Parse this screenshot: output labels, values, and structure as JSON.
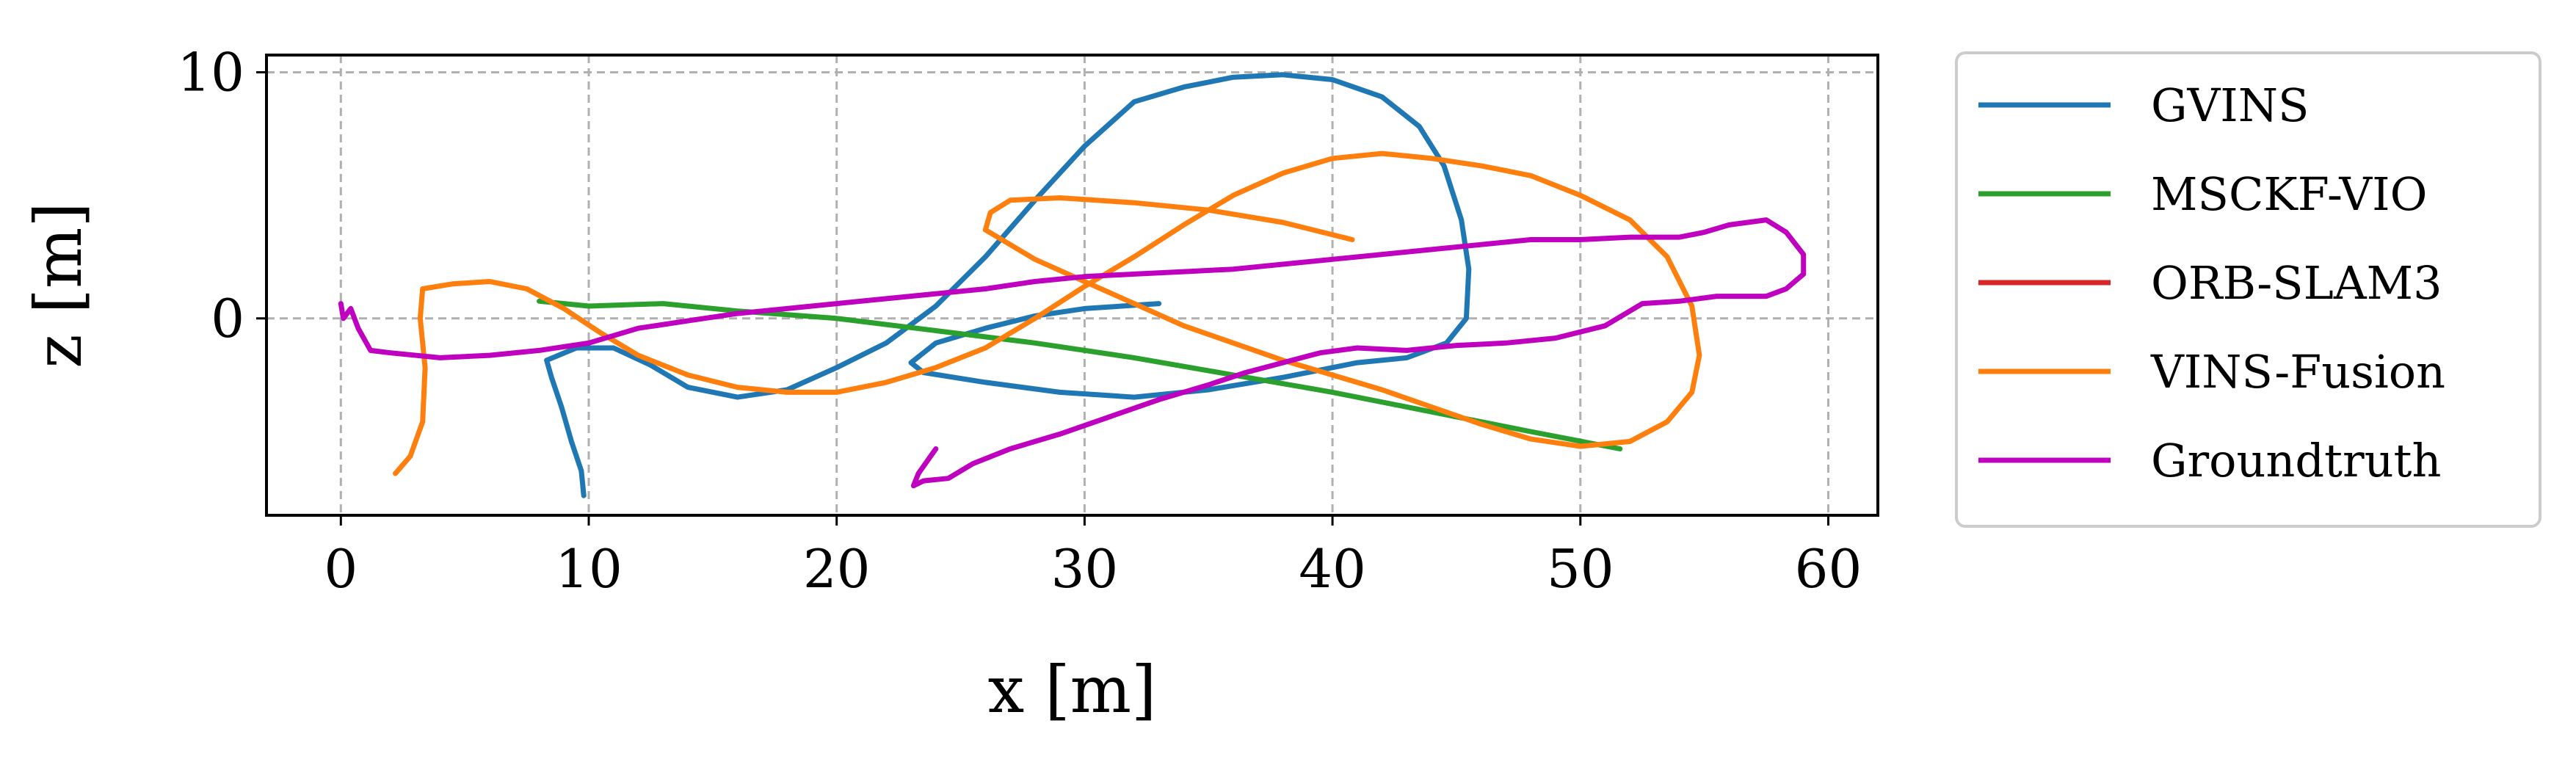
{
  "chart_data": {
    "type": "line",
    "title": "",
    "xlabel": "x [m]",
    "ylabel": "z [m]",
    "xlim": [
      -3,
      62
    ],
    "ylim": [
      -8,
      10.7
    ],
    "xticks": [
      0,
      10,
      20,
      30,
      40,
      50,
      60
    ],
    "yticks": [
      0,
      10
    ],
    "xtick_labels": [
      "0",
      "10",
      "20",
      "30",
      "40",
      "50",
      "60"
    ],
    "ytick_labels": [
      "0",
      "10"
    ],
    "grid": true,
    "grid_style": "dashed",
    "legend_position": "outside-right",
    "series": [
      {
        "name": "GVINS",
        "color": "#1f77b4",
        "points": [
          [
            9.8,
            -7.2
          ],
          [
            9.7,
            -6.2
          ],
          [
            9.3,
            -5.0
          ],
          [
            8.9,
            -3.6
          ],
          [
            8.5,
            -2.4
          ],
          [
            8.3,
            -1.7
          ],
          [
            9.5,
            -1.2
          ],
          [
            11.0,
            -1.2
          ],
          [
            12.5,
            -1.9
          ],
          [
            14.0,
            -2.8
          ],
          [
            16.0,
            -3.2
          ],
          [
            18.0,
            -2.9
          ],
          [
            20.0,
            -2.0
          ],
          [
            22.0,
            -1.0
          ],
          [
            24.0,
            0.5
          ],
          [
            26.0,
            2.5
          ],
          [
            28.0,
            4.8
          ],
          [
            30.0,
            7.0
          ],
          [
            32.0,
            8.8
          ],
          [
            34.0,
            9.4
          ],
          [
            36.0,
            9.8
          ],
          [
            38.0,
            9.9
          ],
          [
            40.0,
            9.7
          ],
          [
            42.0,
            9.0
          ],
          [
            43.5,
            7.8
          ],
          [
            44.5,
            6.2
          ],
          [
            45.2,
            4.0
          ],
          [
            45.5,
            2.0
          ],
          [
            45.4,
            0.0
          ],
          [
            44.6,
            -1.0
          ],
          [
            43.0,
            -1.6
          ],
          [
            41.0,
            -1.8
          ],
          [
            38.0,
            -2.4
          ],
          [
            35.0,
            -2.9
          ],
          [
            32.0,
            -3.2
          ],
          [
            29.0,
            -3.0
          ],
          [
            26.0,
            -2.6
          ],
          [
            23.5,
            -2.2
          ],
          [
            23.0,
            -1.8
          ],
          [
            24.0,
            -1.0
          ],
          [
            26.0,
            -0.4
          ],
          [
            28.0,
            0.1
          ],
          [
            30.0,
            0.4
          ],
          [
            33.0,
            0.6
          ]
        ]
      },
      {
        "name": "MSCKF-VIO",
        "color": "#2ca02c",
        "points": [
          [
            8.0,
            0.7
          ],
          [
            10.0,
            0.5
          ],
          [
            13.0,
            0.6
          ],
          [
            16.0,
            0.3
          ],
          [
            20.0,
            0.0
          ],
          [
            24.0,
            -0.5
          ],
          [
            28.0,
            -1.0
          ],
          [
            32.0,
            -1.6
          ],
          [
            36.0,
            -2.3
          ],
          [
            40.0,
            -3.0
          ],
          [
            44.0,
            -3.8
          ],
          [
            48.0,
            -4.6
          ],
          [
            51.6,
            -5.3
          ]
        ]
      },
      {
        "name": "ORB-SLAM3",
        "color": "#d62728",
        "points": []
      },
      {
        "name": "VINS-Fusion",
        "color": "#ff7f0e",
        "points": [
          [
            2.2,
            -6.3
          ],
          [
            2.8,
            -5.6
          ],
          [
            3.3,
            -4.2
          ],
          [
            3.4,
            -2.0
          ],
          [
            3.2,
            0.0
          ],
          [
            3.3,
            1.2
          ],
          [
            4.5,
            1.4
          ],
          [
            6.0,
            1.5
          ],
          [
            7.5,
            1.2
          ],
          [
            9.0,
            0.4
          ],
          [
            10.5,
            -0.6
          ],
          [
            12.0,
            -1.5
          ],
          [
            14.0,
            -2.3
          ],
          [
            16.0,
            -2.8
          ],
          [
            18.0,
            -3.0
          ],
          [
            20.0,
            -3.0
          ],
          [
            22.0,
            -2.6
          ],
          [
            24.0,
            -2.0
          ],
          [
            26.0,
            -1.2
          ],
          [
            28.0,
            0.0
          ],
          [
            30.0,
            1.3
          ],
          [
            32.0,
            2.5
          ],
          [
            34.0,
            3.8
          ],
          [
            36.0,
            5.0
          ],
          [
            38.0,
            5.9
          ],
          [
            40.0,
            6.5
          ],
          [
            42.0,
            6.7
          ],
          [
            44.0,
            6.5
          ],
          [
            46.0,
            6.2
          ],
          [
            48.0,
            5.8
          ],
          [
            50.0,
            5.0
          ],
          [
            52.0,
            4.0
          ],
          [
            53.5,
            2.5
          ],
          [
            54.5,
            0.5
          ],
          [
            54.8,
            -1.5
          ],
          [
            54.5,
            -3.0
          ],
          [
            53.5,
            -4.2
          ],
          [
            52.0,
            -5.0
          ],
          [
            50.0,
            -5.2
          ],
          [
            48.0,
            -4.9
          ],
          [
            46.0,
            -4.3
          ],
          [
            44.0,
            -3.6
          ],
          [
            42.0,
            -2.9
          ],
          [
            40.0,
            -2.3
          ],
          [
            38.0,
            -1.7
          ],
          [
            36.0,
            -1.0
          ],
          [
            34.0,
            -0.3
          ],
          [
            32.0,
            0.6
          ],
          [
            30.0,
            1.5
          ],
          [
            28.0,
            2.4
          ],
          [
            26.0,
            3.6
          ],
          [
            26.2,
            4.3
          ],
          [
            27.0,
            4.8
          ],
          [
            29.0,
            4.9
          ],
          [
            32.0,
            4.7
          ],
          [
            35.0,
            4.4
          ],
          [
            38.0,
            3.9
          ],
          [
            40.8,
            3.2
          ]
        ]
      },
      {
        "name": "Groundtruth",
        "color": "#bf00bf",
        "points": [
          [
            0.0,
            0.6
          ],
          [
            0.1,
            0.0
          ],
          [
            0.4,
            0.4
          ],
          [
            0.7,
            -0.4
          ],
          [
            1.2,
            -1.3
          ],
          [
            2.0,
            -1.4
          ],
          [
            4.0,
            -1.6
          ],
          [
            6.0,
            -1.5
          ],
          [
            8.0,
            -1.3
          ],
          [
            10.0,
            -1.0
          ],
          [
            12.0,
            -0.4
          ],
          [
            14.0,
            -0.1
          ],
          [
            16.0,
            0.2
          ],
          [
            18.0,
            0.4
          ],
          [
            20.0,
            0.6
          ],
          [
            22.0,
            0.8
          ],
          [
            24.0,
            1.0
          ],
          [
            26.0,
            1.2
          ],
          [
            28.0,
            1.5
          ],
          [
            30.0,
            1.7
          ],
          [
            32.0,
            1.8
          ],
          [
            34.0,
            1.9
          ],
          [
            36.0,
            2.0
          ],
          [
            38.0,
            2.2
          ],
          [
            40.0,
            2.4
          ],
          [
            42.0,
            2.6
          ],
          [
            44.0,
            2.8
          ],
          [
            46.0,
            3.0
          ],
          [
            48.0,
            3.2
          ],
          [
            50.0,
            3.2
          ],
          [
            52.0,
            3.3
          ],
          [
            54.0,
            3.3
          ],
          [
            55.0,
            3.5
          ],
          [
            56.0,
            3.8
          ],
          [
            57.5,
            4.0
          ],
          [
            58.3,
            3.5
          ],
          [
            59.0,
            2.6
          ],
          [
            59.0,
            1.8
          ],
          [
            58.3,
            1.2
          ],
          [
            57.5,
            0.9
          ],
          [
            56.5,
            0.9
          ],
          [
            55.5,
            0.9
          ],
          [
            54.0,
            0.7
          ],
          [
            52.5,
            0.6
          ],
          [
            51.0,
            -0.3
          ],
          [
            49.0,
            -0.8
          ],
          [
            47.0,
            -1.0
          ],
          [
            45.0,
            -1.1
          ],
          [
            43.0,
            -1.3
          ],
          [
            41.0,
            -1.2
          ],
          [
            39.5,
            -1.4
          ],
          [
            38.0,
            -1.8
          ],
          [
            36.5,
            -2.2
          ],
          [
            35.0,
            -2.7
          ],
          [
            33.0,
            -3.3
          ],
          [
            31.0,
            -4.0
          ],
          [
            29.0,
            -4.7
          ],
          [
            27.0,
            -5.3
          ],
          [
            25.5,
            -5.9
          ],
          [
            24.5,
            -6.5
          ],
          [
            23.5,
            -6.6
          ],
          [
            23.1,
            -6.8
          ],
          [
            23.3,
            -6.3
          ],
          [
            24.0,
            -5.3
          ]
        ]
      }
    ]
  }
}
